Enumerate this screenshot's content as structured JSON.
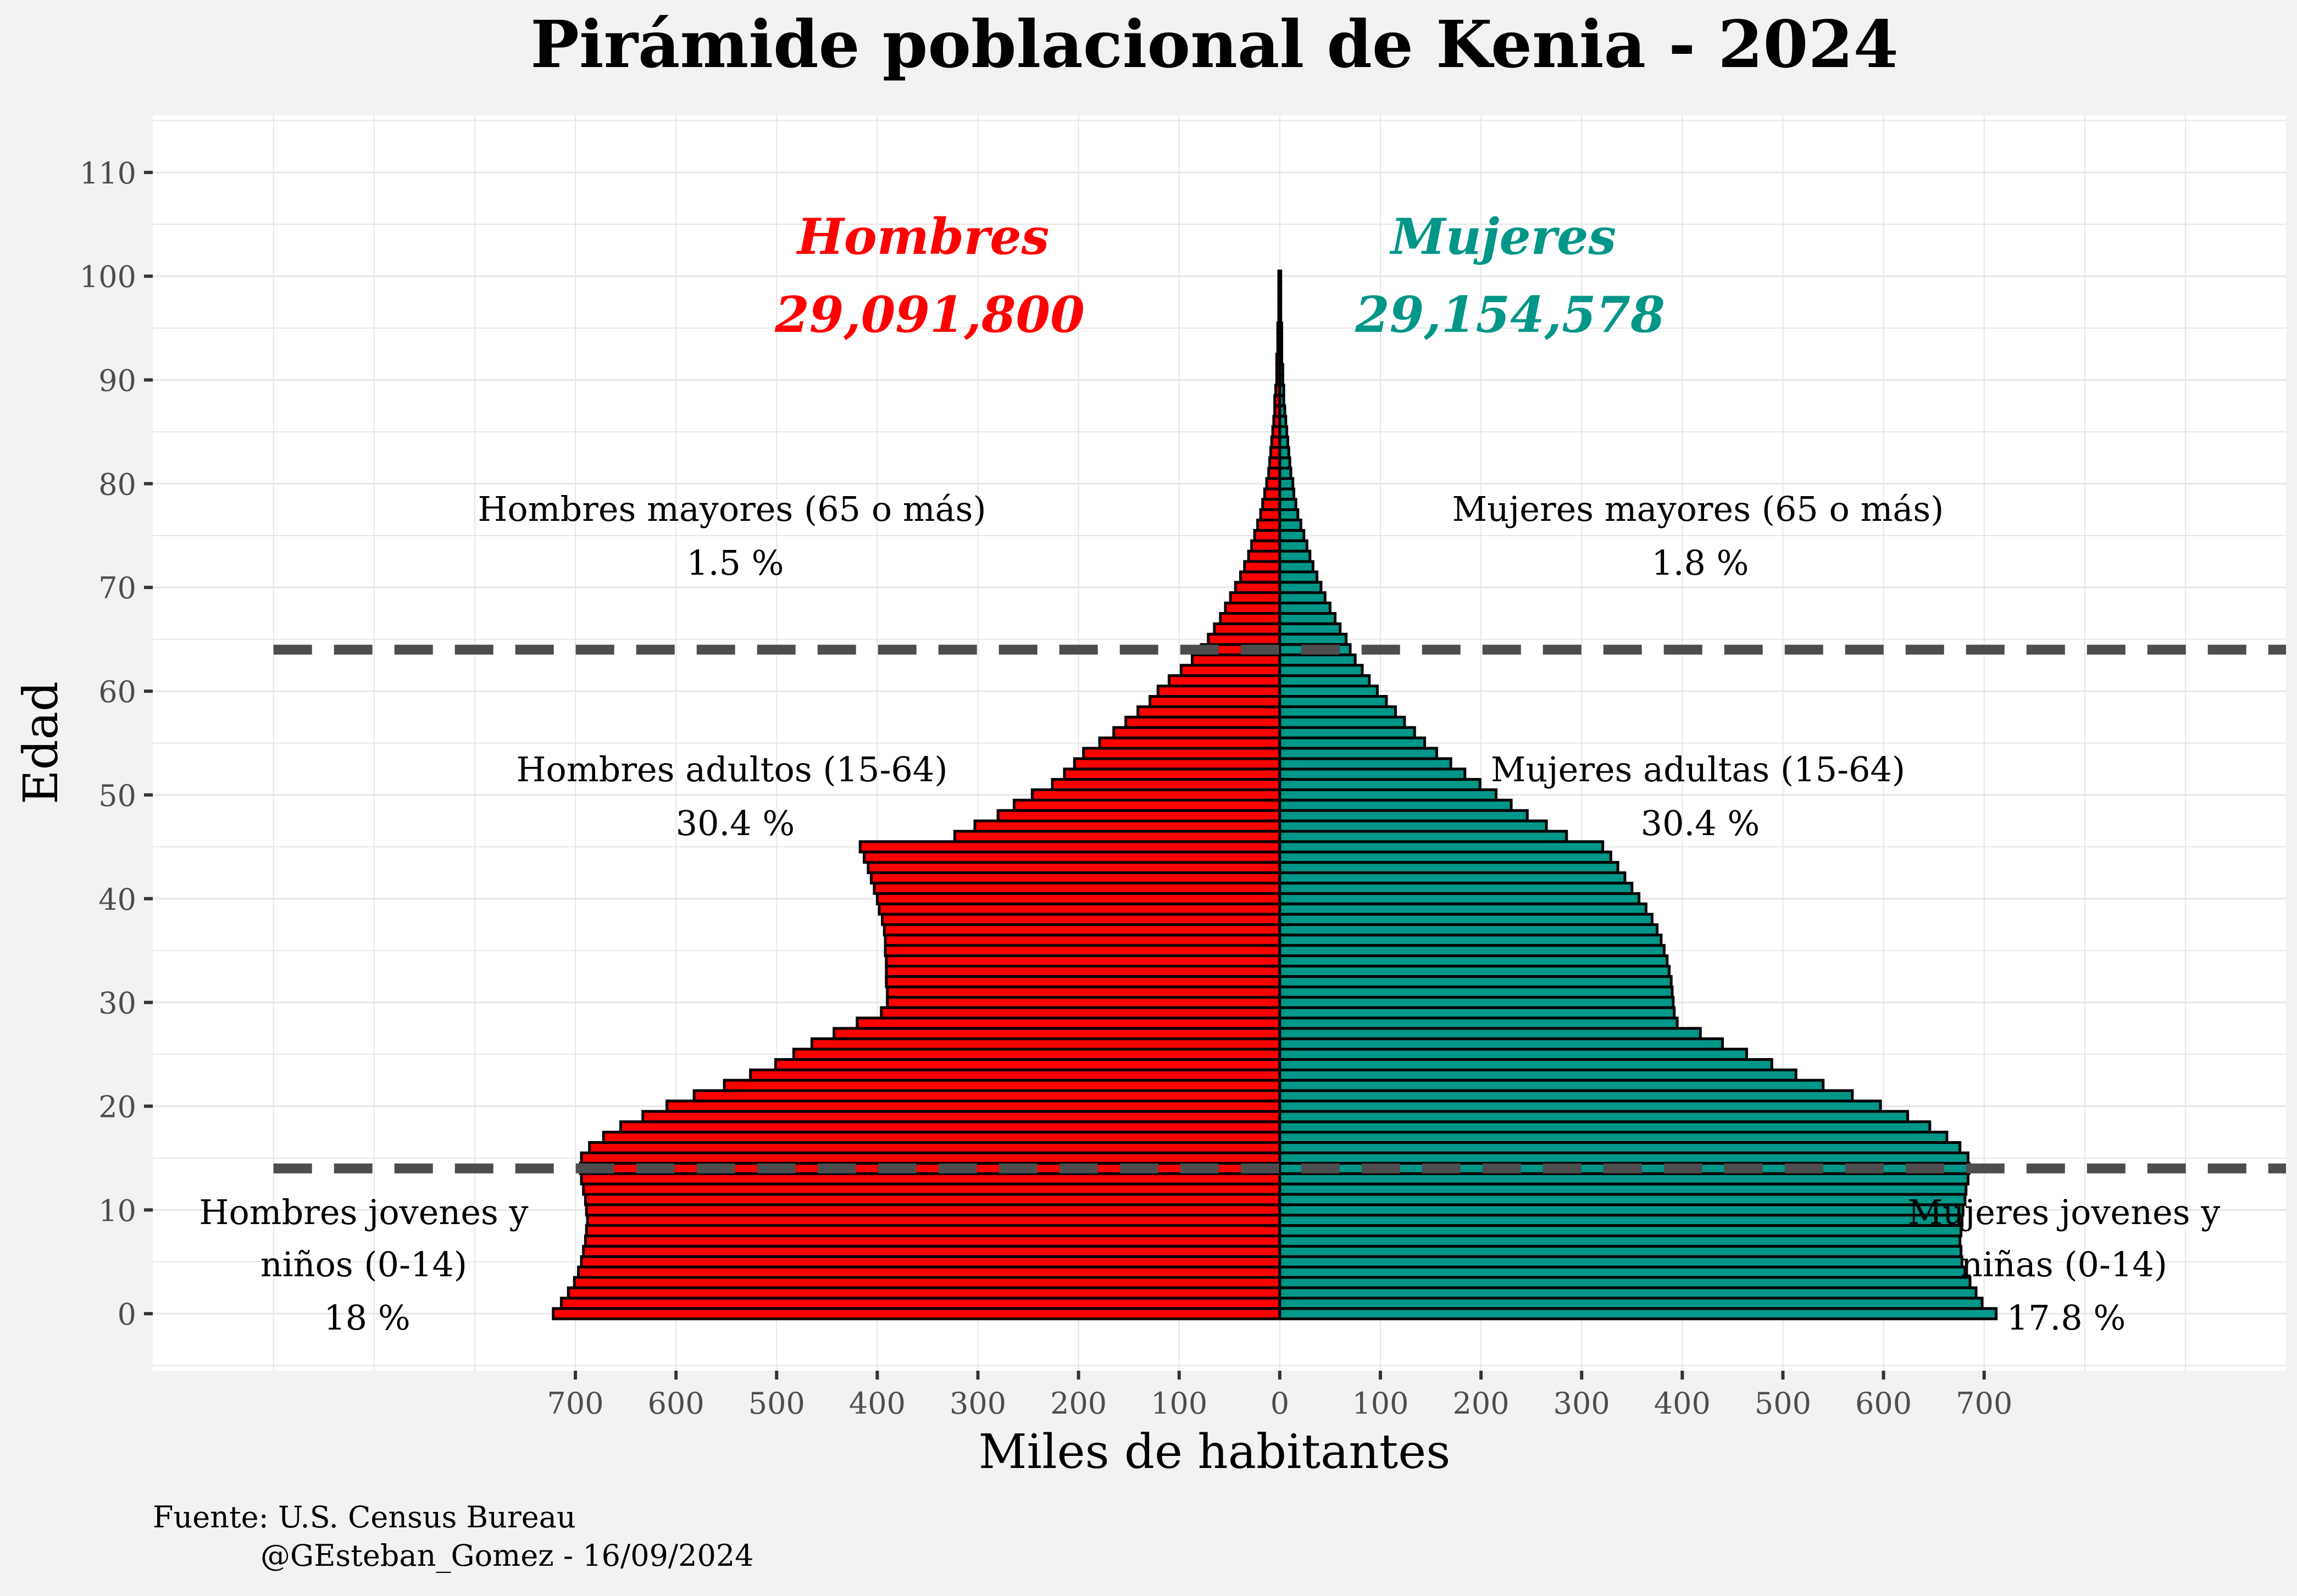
{
  "chart_data": {
    "type": "bar",
    "orientation": "horizontal-population-pyramid",
    "title": "Pirámide poblacional de Kenia - 2024",
    "xlabel": "Miles de habitantes",
    "ylabel": "Edad",
    "x_tick_labels": [
      "700",
      "600",
      "500",
      "400",
      "300",
      "200",
      "100",
      "0",
      "100",
      "200",
      "300",
      "400",
      "500",
      "600",
      "700"
    ],
    "x_tick_values": [
      -700,
      -600,
      -500,
      -400,
      -300,
      -200,
      -100,
      0,
      100,
      200,
      300,
      400,
      500,
      600,
      700
    ],
    "y_tick_labels": [
      "0",
      "10",
      "20",
      "30",
      "40",
      "50",
      "60",
      "70",
      "80",
      "90",
      "100",
      "110"
    ],
    "y_tick_values": [
      0,
      10,
      20,
      30,
      40,
      50,
      60,
      70,
      80,
      90,
      100,
      110
    ],
    "xlim": [
      -1120,
      1000
    ],
    "ylim": [
      -5.5,
      115.5
    ],
    "grid": true,
    "legend": "none",
    "colors": {
      "male": "#ff0000",
      "female": "#009688",
      "bar_border": "#000000",
      "panel": "#ffffff",
      "background": "#f2f2f2",
      "grid": "#e6e6e6",
      "dashed_line": "#4d4d4d"
    },
    "reference_lines": [
      {
        "y": 64,
        "style": "dashed"
      },
      {
        "y": 14,
        "style": "dashed"
      }
    ],
    "ages": [
      0,
      1,
      2,
      3,
      4,
      5,
      6,
      7,
      8,
      9,
      10,
      11,
      12,
      13,
      14,
      15,
      16,
      17,
      18,
      19,
      20,
      21,
      22,
      23,
      24,
      25,
      26,
      27,
      28,
      29,
      30,
      31,
      32,
      33,
      34,
      35,
      36,
      37,
      38,
      39,
      40,
      41,
      42,
      43,
      44,
      45,
      46,
      47,
      48,
      49,
      50,
      51,
      52,
      53,
      54,
      55,
      56,
      57,
      58,
      59,
      60,
      61,
      62,
      63,
      64,
      65,
      66,
      67,
      68,
      69,
      70,
      71,
      72,
      73,
      74,
      75,
      76,
      77,
      78,
      79,
      80,
      81,
      82,
      83,
      84,
      85,
      86,
      87,
      88,
      89,
      90,
      91,
      92,
      93,
      94,
      95,
      96,
      97,
      98,
      99,
      100
    ],
    "series": [
      {
        "name": "Hombres",
        "values": [
          722,
          714,
          707,
          701,
          697,
          694,
          692,
          690,
          689,
          688,
          689,
          690,
          692,
          694,
          695,
          694,
          686,
          672,
          655,
          633,
          609,
          582,
          552,
          526,
          501,
          483,
          465,
          443,
          420,
          396,
          390,
          390,
          391,
          391,
          391,
          392,
          392,
          393,
          395,
          398,
          400,
          403,
          406,
          409,
          413,
          417,
          323,
          303,
          280,
          264,
          246,
          226,
          214,
          204,
          195,
          179,
          165,
          153,
          141,
          129,
          121,
          110,
          98,
          87,
          78,
          71,
          65,
          59,
          54,
          49,
          44,
          39,
          35,
          31,
          28,
          25,
          22,
          19,
          17,
          15,
          13,
          11,
          10,
          9,
          8,
          7,
          6,
          5,
          5,
          4,
          3,
          3,
          3,
          2,
          2,
          2,
          1,
          1,
          1,
          1,
          1
        ]
      },
      {
        "name": "Mujeres",
        "values": [
          712,
          698,
          692,
          686,
          681,
          678,
          677,
          676,
          677,
          678,
          679,
          681,
          682,
          684,
          685,
          684,
          676,
          663,
          646,
          624,
          597,
          569,
          540,
          513,
          489,
          464,
          440,
          418,
          395,
          392,
          391,
          390,
          389,
          387,
          385,
          382,
          379,
          375,
          370,
          364,
          357,
          350,
          343,
          336,
          329,
          321,
          285,
          265,
          246,
          230,
          215,
          199,
          184,
          170,
          156,
          144,
          134,
          124,
          115,
          106,
          97,
          89,
          82,
          75,
          70,
          66,
          60,
          55,
          50,
          45,
          41,
          37,
          33,
          30,
          27,
          24,
          21,
          18,
          16,
          14,
          13,
          11,
          10,
          9,
          8,
          7,
          6,
          5,
          4,
          4,
          3,
          3,
          2,
          2,
          2,
          2,
          1,
          1,
          1,
          1,
          1
        ]
      }
    ],
    "annotations": {
      "male_title": "Hombres",
      "male_total": "29,091,800",
      "female_title": "Mujeres",
      "female_total": "29,154,578",
      "male_old_label": "Hombres mayores (65 o más)",
      "male_old_pct": "1.5 %",
      "female_old_label": "Mujeres mayores (65 o más)",
      "female_old_pct": "1.8 %",
      "male_adult_label": "Hombres adultos (15-64)",
      "male_adult_pct": "30.4 %",
      "female_adult_label": "Mujeres adultas (15-64)",
      "female_adult_pct": "30.4 %",
      "male_young_label_1": "Hombres jovenes y",
      "male_young_label_2": "niños (0-14)",
      "male_young_pct": "18 %",
      "female_young_label_1": "Mujeres jovenes y",
      "female_young_label_2": "niñas (0-14)",
      "female_young_pct": "17.8 %"
    },
    "caption_line_1": "Fuente: U.S. Census Bureau",
    "caption_line_2": "@GEsteban_Gomez - 16/09/2024"
  }
}
